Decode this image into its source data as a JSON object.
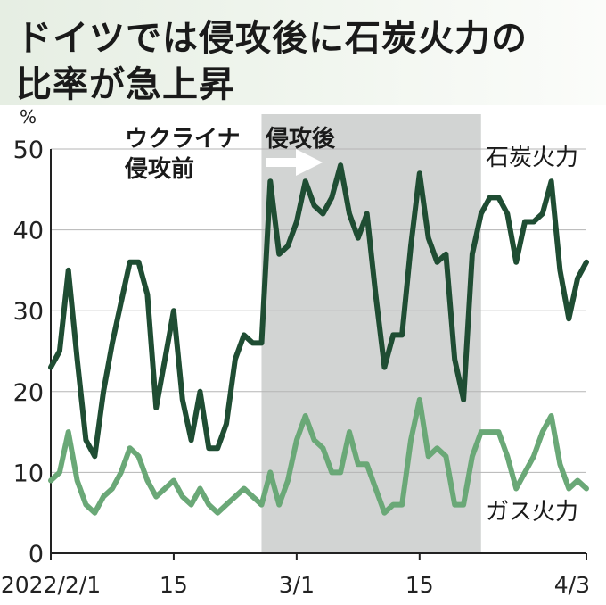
{
  "title_line1": "ドイツでは侵攻後に石炭火力の",
  "title_line2": "比率が急上昇",
  "colors": {
    "coal": "#1f4d33",
    "gas": "#6aa877",
    "shade": "#d2d4d3",
    "title_bg": "#e6eee3",
    "axis": "#222222"
  },
  "annotations": {
    "before_line1": "ウクライナ",
    "before_line2": "侵攻前",
    "after": "侵攻後"
  },
  "chart_data": {
    "type": "line",
    "title": "ドイツでは侵攻後に石炭火力の比率が急上昇",
    "ylabel": "%",
    "ylim": [
      0,
      50
    ],
    "yticks": [
      "0",
      "10",
      "20",
      "30",
      "40",
      "50"
    ],
    "xtick_labels": [
      {
        "day": 1,
        "label": "2022/2/1"
      },
      {
        "day": 15,
        "label": "15"
      },
      {
        "day": 29,
        "label": "3/1"
      },
      {
        "day": 43,
        "label": "15"
      },
      {
        "day": 62,
        "label": "4/3"
      }
    ],
    "x_range_days": [
      1,
      62
    ],
    "shaded_period_days": [
      25,
      50
    ],
    "series": [
      {
        "name": "石炭火力",
        "values": [
          23,
          25,
          35,
          24,
          14,
          12,
          20,
          26,
          31,
          36,
          36,
          32,
          18,
          24,
          30,
          19,
          14,
          20,
          13,
          13,
          16,
          24,
          27,
          26,
          26,
          46,
          37,
          38,
          41,
          46,
          43,
          42,
          44,
          48,
          42,
          39,
          42,
          32,
          23,
          27,
          27,
          38,
          47,
          39,
          36,
          37,
          24,
          19,
          37,
          42,
          44,
          44,
          42,
          36,
          41,
          41,
          42,
          46,
          35,
          29,
          34,
          36
        ]
      },
      {
        "name": "ガス火力",
        "values": [
          9,
          10,
          15,
          9,
          6,
          5,
          7,
          8,
          10,
          13,
          12,
          9,
          7,
          8,
          9,
          7,
          6,
          8,
          6,
          5,
          6,
          7,
          8,
          7,
          6,
          10,
          6,
          9,
          14,
          17,
          14,
          13,
          10,
          10,
          15,
          11,
          11,
          8,
          5,
          6,
          6,
          14,
          19,
          12,
          13,
          12,
          6,
          6,
          12,
          15,
          15,
          15,
          12,
          8,
          10,
          12,
          15,
          17,
          11,
          8,
          9,
          8
        ]
      }
    ]
  }
}
